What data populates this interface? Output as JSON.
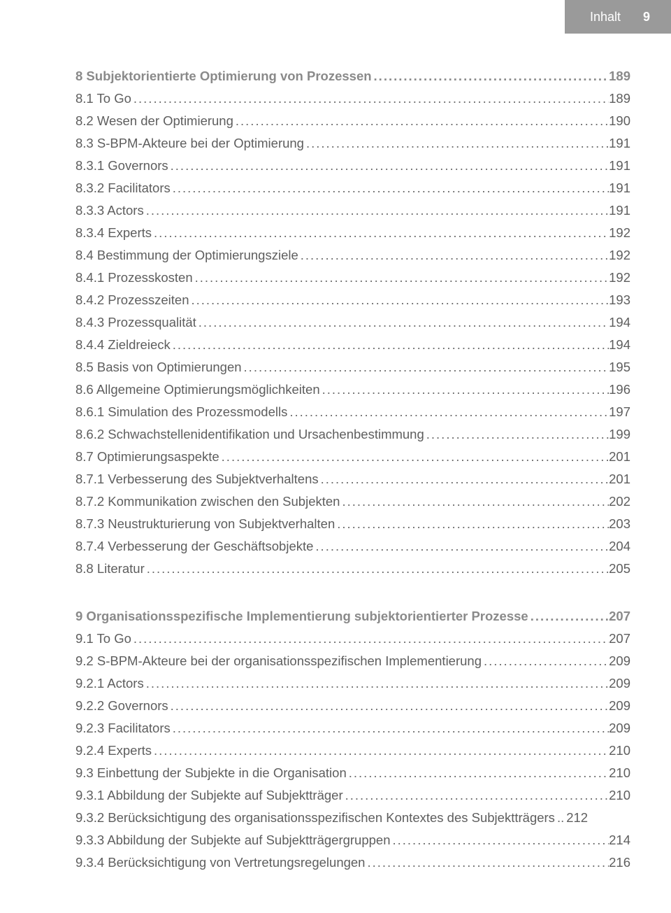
{
  "header": {
    "label": "Inhalt",
    "page": "9"
  },
  "dots": "....................................................................................................................................................................................",
  "toc": [
    {
      "title": "8 Subjektorientierte Optimierung von Prozessen",
      "page": "189",
      "chapter": true
    },
    {
      "title": "8.1 To Go",
      "page": "189"
    },
    {
      "title": "8.2 Wesen der Optimierung",
      "page": "190"
    },
    {
      "title": "8.3 S-BPM-Akteure bei der Optimierung",
      "page": "191"
    },
    {
      "title": "8.3.1 Governors",
      "page": "191"
    },
    {
      "title": "8.3.2 Facilitators",
      "page": "191"
    },
    {
      "title": "8.3.3 Actors",
      "page": "191"
    },
    {
      "title": "8.3.4 Experts",
      "page": "192"
    },
    {
      "title": "8.4 Bestimmung der Optimierungsziele",
      "page": "192"
    },
    {
      "title": "8.4.1 Prozesskosten",
      "page": "192"
    },
    {
      "title": "8.4.2 Prozesszeiten",
      "page": "193"
    },
    {
      "title": "8.4.3 Prozessqualität",
      "page": "194"
    },
    {
      "title": "8.4.4 Zieldreieck",
      "page": "194"
    },
    {
      "title": "8.5 Basis von Optimierungen",
      "page": "195"
    },
    {
      "title": "8.6 Allgemeine Optimierungsmöglichkeiten",
      "page": "196"
    },
    {
      "title": "8.6.1 Simulation des Prozessmodells",
      "page": "197"
    },
    {
      "title": "8.6.2 Schwachstellenidentifikation und Ursachenbestimmung",
      "page": "199"
    },
    {
      "title": "8.7 Optimierungsaspekte",
      "page": "201"
    },
    {
      "title": "8.7.1 Verbesserung des Subjektverhaltens",
      "page": "201"
    },
    {
      "title": "8.7.2 Kommunikation zwischen den Subjekten",
      "page": "202"
    },
    {
      "title": "8.7.3 Neustrukturierung von Subjektverhalten",
      "page": "203"
    },
    {
      "title": "8.7.4 Verbesserung der Geschäftsobjekte",
      "page": "204"
    },
    {
      "title": "8.8 Literatur",
      "page": "205"
    },
    {
      "gap": true
    },
    {
      "title": "9 Organisationsspezifische Implementierung subjektorientierter Prozesse",
      "page": "207",
      "chapter": true
    },
    {
      "title": "9.1 To Go",
      "page": "207"
    },
    {
      "title": "9.2 S-BPM-Akteure bei der organisationsspezifischen Implementierung",
      "page": "209"
    },
    {
      "title": "9.2.1 Actors",
      "page": "209"
    },
    {
      "title": "9.2.2 Governors",
      "page": "209"
    },
    {
      "title": "9.2.3 Facilitators",
      "page": "209"
    },
    {
      "title": "9.2.4 Experts",
      "page": "210"
    },
    {
      "title": "9.3 Einbettung der Subjekte in die Organisation",
      "page": "210"
    },
    {
      "title": "9.3.1 Abbildung der Subjekte auf Subjektträger",
      "page": "210"
    },
    {
      "title": "9.3.2 Berücksichtigung des organisationsspezifischen Kontextes des Subjektträgers",
      "page": "212",
      "tight": true
    },
    {
      "title": "9.3.3 Abbildung der Subjekte auf Subjektträgergruppen",
      "page": "214"
    },
    {
      "title": "9.3.4 Berücksichtigung von Vertretungsregelungen",
      "page": "216"
    }
  ]
}
